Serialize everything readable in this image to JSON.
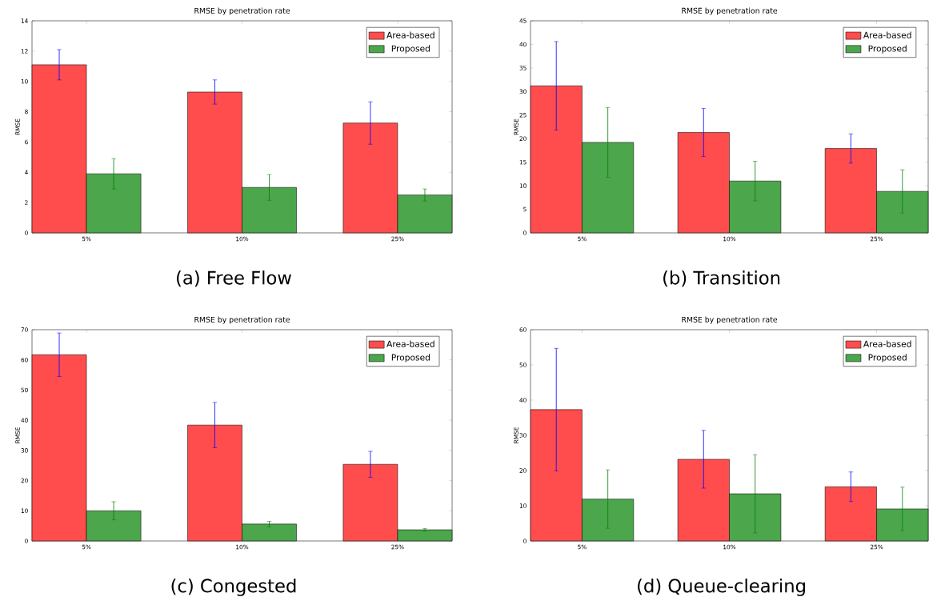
{
  "chart_data": [
    {
      "type": "bar",
      "title": "RMSE by penetration rate",
      "ylabel": "RMSE",
      "annotations": [
        "(a) Free Flow"
      ],
      "categories": [
        "5%",
        "10%",
        "25%"
      ],
      "ylim": [
        0,
        14
      ],
      "yticks": [
        0,
        2,
        4,
        6,
        8,
        10,
        12,
        14
      ],
      "legend": "top right",
      "series": [
        {
          "name": "Area-based",
          "color": "#ff4d4d",
          "values": [
            11.1,
            9.3,
            7.25
          ],
          "errors": [
            1.0,
            0.8,
            1.4
          ]
        },
        {
          "name": "Proposed",
          "color": "#4ca64c",
          "values": [
            3.9,
            3.0,
            2.5
          ],
          "errors": [
            1.0,
            0.85,
            0.4
          ]
        }
      ]
    },
    {
      "type": "bar",
      "title": "RMSE by penetration rate",
      "ylabel": "RMSE",
      "annotations": [
        "(b) Transition"
      ],
      "categories": [
        "5%",
        "10%",
        "25%"
      ],
      "ylim": [
        0,
        45
      ],
      "yticks": [
        0,
        5,
        10,
        15,
        20,
        25,
        30,
        35,
        40,
        45
      ],
      "legend": "top right",
      "series": [
        {
          "name": "Area-based",
          "color": "#ff4d4d",
          "values": [
            31.2,
            21.3,
            17.9
          ],
          "errors": [
            9.4,
            5.1,
            3.1
          ]
        },
        {
          "name": "Proposed",
          "color": "#4ca64c",
          "values": [
            19.2,
            11.0,
            8.8
          ],
          "errors": [
            7.4,
            4.2,
            4.6
          ]
        }
      ]
    },
    {
      "type": "bar",
      "title": "RMSE by penetration rate",
      "ylabel": "RMSE",
      "annotations": [
        "(c) Congested"
      ],
      "categories": [
        "5%",
        "10%",
        "25%"
      ],
      "ylim": [
        0,
        70
      ],
      "yticks": [
        0,
        10,
        20,
        30,
        40,
        50,
        60,
        70
      ],
      "legend": "top right",
      "series": [
        {
          "name": "Area-based",
          "color": "#ff4d4d",
          "values": [
            61.7,
            38.4,
            25.4
          ],
          "errors": [
            7.2,
            7.5,
            4.3
          ]
        },
        {
          "name": "Proposed",
          "color": "#4ca64c",
          "values": [
            10.0,
            5.6,
            3.7
          ],
          "errors": [
            3.0,
            0.9,
            0.4
          ]
        }
      ]
    },
    {
      "type": "bar",
      "title": "RMSE by penetration rate",
      "ylabel": "RMSE",
      "annotations": [
        "(d) Queue-clearing"
      ],
      "categories": [
        "5%",
        "10%",
        "25%"
      ],
      "ylim": [
        0,
        60
      ],
      "yticks": [
        0,
        10,
        20,
        30,
        40,
        50,
        60
      ],
      "legend": "top right",
      "series": [
        {
          "name": "Area-based",
          "color": "#ff4d4d",
          "values": [
            37.3,
            23.2,
            15.4
          ],
          "errors": [
            17.4,
            8.2,
            4.2
          ]
        },
        {
          "name": "Proposed",
          "color": "#4ca64c",
          "values": [
            11.9,
            13.4,
            9.1
          ],
          "errors": [
            8.3,
            11.1,
            6.2
          ]
        }
      ]
    }
  ]
}
